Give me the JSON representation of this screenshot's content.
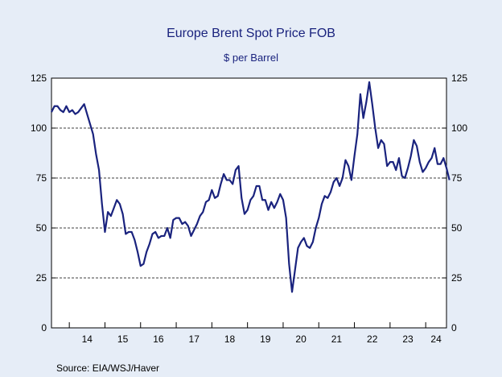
{
  "chart_data": {
    "type": "line",
    "title": "Europe Brent Spot Price FOB",
    "subtitle": "$ per Barrel",
    "source": "Source:  EIA/WSJ/Haver",
    "ylim": [
      0,
      125
    ],
    "yticks": [
      0,
      25,
      50,
      75,
      100,
      125
    ],
    "xlim": [
      "2013-07",
      "2024-08"
    ],
    "xtick_labels": [
      "14",
      "15",
      "16",
      "17",
      "18",
      "19",
      "20",
      "21",
      "22",
      "23",
      "24"
    ],
    "grid": "horizontal dashed",
    "series": [
      {
        "color": "#1a237e",
        "points": [
          [
            "2013-07",
            108
          ],
          [
            "2013-08",
            111
          ],
          [
            "2013-09",
            111
          ],
          [
            "2013-10",
            109
          ],
          [
            "2013-11",
            108
          ],
          [
            "2013-12",
            111
          ],
          [
            "2014-01",
            108
          ],
          [
            "2014-02",
            109
          ],
          [
            "2014-03",
            107
          ],
          [
            "2014-04",
            108
          ],
          [
            "2014-05",
            110
          ],
          [
            "2014-06",
            112
          ],
          [
            "2014-07",
            107
          ],
          [
            "2014-08",
            102
          ],
          [
            "2014-09",
            97
          ],
          [
            "2014-10",
            87
          ],
          [
            "2014-11",
            79
          ],
          [
            "2014-12",
            62
          ],
          [
            "2015-01",
            48
          ],
          [
            "2015-02",
            58
          ],
          [
            "2015-03",
            56
          ],
          [
            "2015-04",
            60
          ],
          [
            "2015-05",
            64
          ],
          [
            "2015-06",
            62
          ],
          [
            "2015-07",
            57
          ],
          [
            "2015-08",
            47
          ],
          [
            "2015-09",
            48
          ],
          [
            "2015-10",
            48
          ],
          [
            "2015-11",
            44
          ],
          [
            "2015-12",
            38
          ],
          [
            "2016-01",
            31
          ],
          [
            "2016-02",
            32
          ],
          [
            "2016-03",
            38
          ],
          [
            "2016-04",
            42
          ],
          [
            "2016-05",
            47
          ],
          [
            "2016-06",
            48
          ],
          [
            "2016-07",
            45
          ],
          [
            "2016-08",
            46
          ],
          [
            "2016-09",
            46
          ],
          [
            "2016-10",
            50
          ],
          [
            "2016-11",
            45
          ],
          [
            "2016-12",
            54
          ],
          [
            "2017-01",
            55
          ],
          [
            "2017-02",
            55
          ],
          [
            "2017-03",
            52
          ],
          [
            "2017-04",
            53
          ],
          [
            "2017-05",
            51
          ],
          [
            "2017-06",
            46
          ],
          [
            "2017-07",
            49
          ],
          [
            "2017-08",
            52
          ],
          [
            "2017-09",
            56
          ],
          [
            "2017-10",
            58
          ],
          [
            "2017-11",
            63
          ],
          [
            "2017-12",
            64
          ],
          [
            "2018-01",
            69
          ],
          [
            "2018-02",
            65
          ],
          [
            "2018-03",
            66
          ],
          [
            "2018-04",
            72
          ],
          [
            "2018-05",
            77
          ],
          [
            "2018-06",
            74
          ],
          [
            "2018-07",
            74
          ],
          [
            "2018-08",
            72
          ],
          [
            "2018-09",
            79
          ],
          [
            "2018-10",
            81
          ],
          [
            "2018-11",
            65
          ],
          [
            "2018-12",
            57
          ],
          [
            "2019-01",
            59
          ],
          [
            "2019-02",
            64
          ],
          [
            "2019-03",
            66
          ],
          [
            "2019-04",
            71
          ],
          [
            "2019-05",
            71
          ],
          [
            "2019-06",
            64
          ],
          [
            "2019-07",
            64
          ],
          [
            "2019-08",
            59
          ],
          [
            "2019-09",
            63
          ],
          [
            "2019-10",
            60
          ],
          [
            "2019-11",
            63
          ],
          [
            "2019-12",
            67
          ],
          [
            "2020-01",
            64
          ],
          [
            "2020-02",
            55
          ],
          [
            "2020-03",
            32
          ],
          [
            "2020-04",
            18
          ],
          [
            "2020-05",
            29
          ],
          [
            "2020-06",
            40
          ],
          [
            "2020-07",
            43
          ],
          [
            "2020-08",
            45
          ],
          [
            "2020-09",
            41
          ],
          [
            "2020-10",
            40
          ],
          [
            "2020-11",
            43
          ],
          [
            "2020-12",
            50
          ],
          [
            "2021-01",
            55
          ],
          [
            "2021-02",
            62
          ],
          [
            "2021-03",
            66
          ],
          [
            "2021-04",
            65
          ],
          [
            "2021-05",
            68
          ],
          [
            "2021-06",
            73
          ],
          [
            "2021-07",
            75
          ],
          [
            "2021-08",
            71
          ],
          [
            "2021-09",
            75
          ],
          [
            "2021-10",
            84
          ],
          [
            "2021-11",
            81
          ],
          [
            "2021-12",
            74
          ],
          [
            "2022-01",
            86
          ],
          [
            "2022-02",
            97
          ],
          [
            "2022-03",
            117
          ],
          [
            "2022-04",
            105
          ],
          [
            "2022-05",
            113
          ],
          [
            "2022-06",
            123
          ],
          [
            "2022-07",
            112
          ],
          [
            "2022-08",
            100
          ],
          [
            "2022-09",
            90
          ],
          [
            "2022-10",
            94
          ],
          [
            "2022-11",
            92
          ],
          [
            "2022-12",
            81
          ],
          [
            "2023-01",
            83
          ],
          [
            "2023-02",
            83
          ],
          [
            "2023-03",
            79
          ],
          [
            "2023-04",
            85
          ],
          [
            "2023-05",
            76
          ],
          [
            "2023-06",
            75
          ],
          [
            "2023-07",
            80
          ],
          [
            "2023-08",
            86
          ],
          [
            "2023-09",
            94
          ],
          [
            "2023-10",
            91
          ],
          [
            "2023-11",
            83
          ],
          [
            "2023-12",
            78
          ],
          [
            "2024-01",
            80
          ],
          [
            "2024-02",
            83
          ],
          [
            "2024-03",
            85
          ],
          [
            "2024-04",
            90
          ],
          [
            "2024-05",
            82
          ],
          [
            "2024-06",
            82
          ],
          [
            "2024-07",
            85
          ],
          [
            "2024-08",
            80
          ],
          [
            "2024-09",
            74
          ]
        ]
      }
    ]
  }
}
